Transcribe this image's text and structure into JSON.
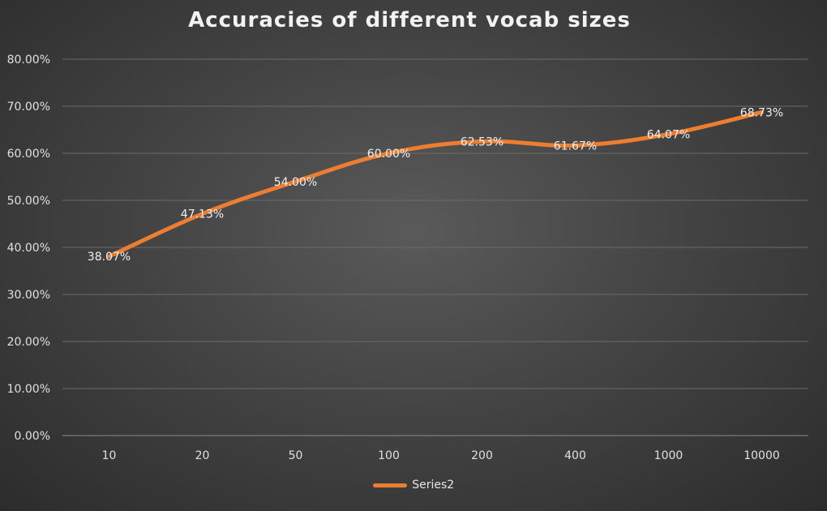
{
  "chart_data": {
    "type": "line",
    "title": "Accuracies of different vocab sizes",
    "categories": [
      "10",
      "20",
      "50",
      "100",
      "200",
      "400",
      "1000",
      "10000"
    ],
    "series": [
      {
        "name": "Series2",
        "values": [
          38.07,
          47.13,
          54.0,
          60.0,
          62.53,
          61.67,
          64.07,
          68.73
        ],
        "labels": [
          "38.07%",
          "47.13%",
          "54.00%",
          "60.00%",
          "62.53%",
          "61.67%",
          "64.07%",
          "68.73%"
        ],
        "color": "#ed7d31"
      }
    ],
    "ylim": [
      0,
      80
    ],
    "yticks": [
      "0.00%",
      "10.00%",
      "20.00%",
      "30.00%",
      "40.00%",
      "50.00%",
      "60.00%",
      "70.00%",
      "80.00%"
    ],
    "xlabel": "",
    "ylabel": "",
    "grid": true,
    "legend": "bottom"
  }
}
